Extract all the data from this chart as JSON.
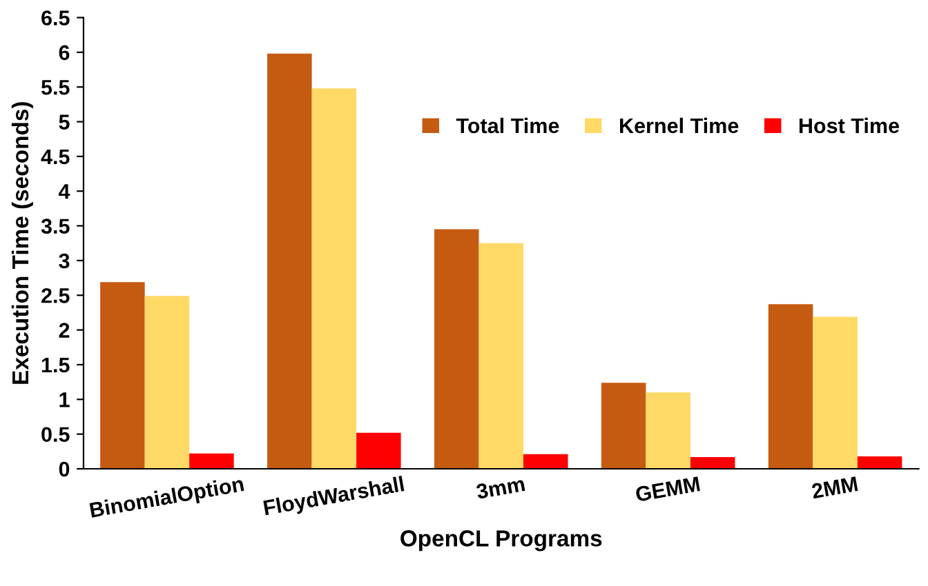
{
  "chart_data": {
    "type": "bar",
    "xlabel": "OpenCL Programs",
    "ylabel": "Execution Time (seconds)",
    "categories": [
      "BinomialOption",
      "FloydWarshall",
      "3mm",
      "GEMM",
      "2MM"
    ],
    "series": [
      {
        "name": "Total Time",
        "color": "#c55a11",
        "values": [
          2.69,
          5.98,
          3.45,
          1.24,
          2.37
        ]
      },
      {
        "name": "Kernel Time",
        "color": "#ffd966",
        "values": [
          2.49,
          5.48,
          3.25,
          1.1,
          2.19
        ]
      },
      {
        "name": "Host Time",
        "color": "#ff0000",
        "values": [
          0.22,
          0.52,
          0.21,
          0.17,
          0.18
        ]
      }
    ],
    "ylim": [
      0,
      6.5
    ],
    "yticks": [
      0,
      0.5,
      1,
      1.5,
      2,
      2.5,
      3,
      3.5,
      4,
      4.5,
      5,
      5.5,
      6,
      6.5
    ],
    "grid": false,
    "legend": "top right"
  }
}
